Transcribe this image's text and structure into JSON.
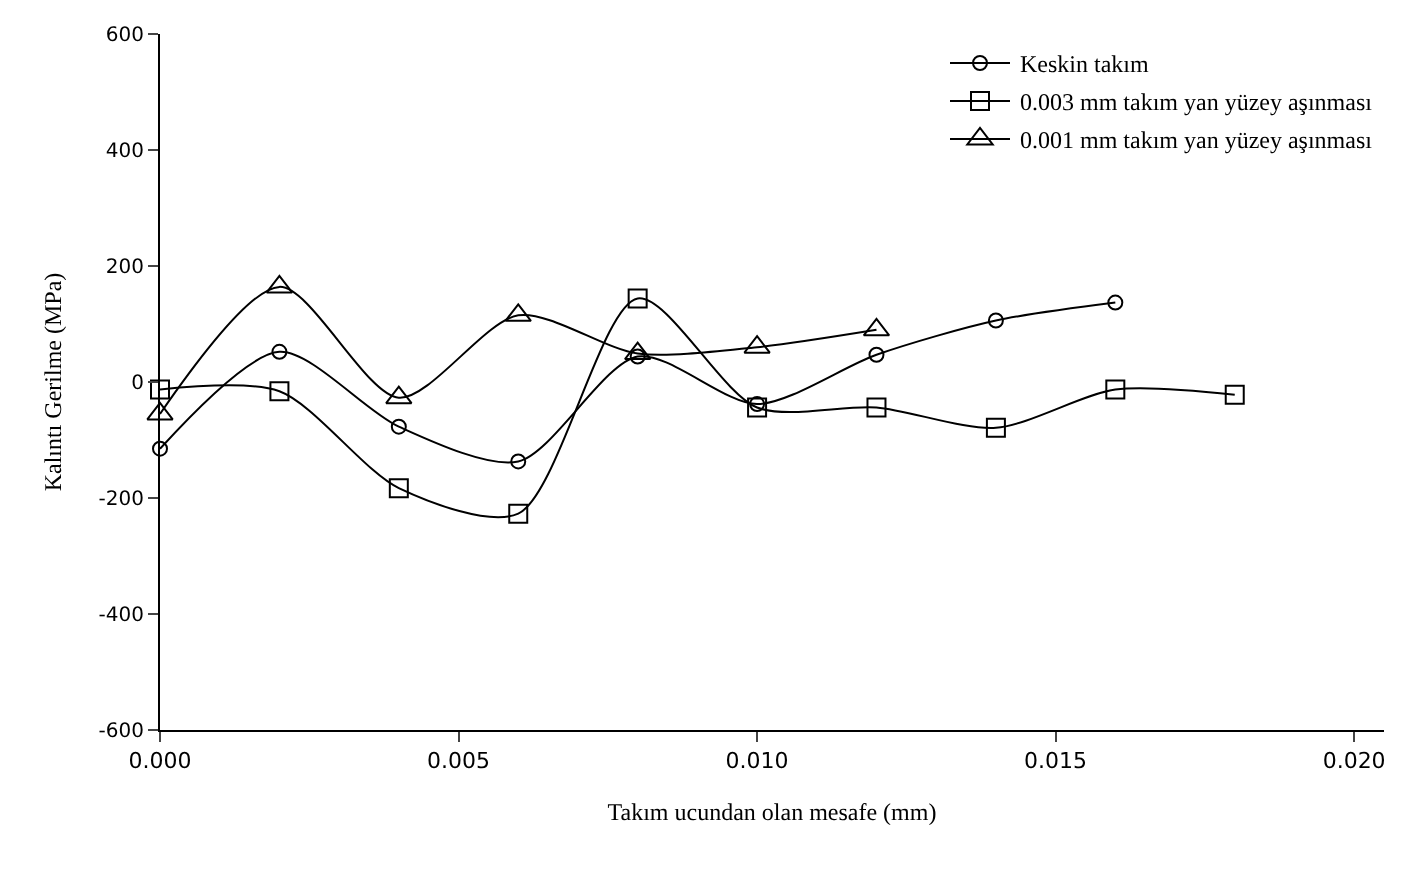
{
  "chart_data": {
    "type": "line",
    "xlabel": "Takım ucundan olan mesafe (mm)",
    "ylabel": "Kalıntı Gerilme (MPa)",
    "series": [
      {
        "name": "Keskin takım",
        "color": "#000000",
        "marker": "circle",
        "x": [
          0,
          0.002,
          0.004,
          0.006,
          0.008,
          0.01,
          0.012,
          0.014,
          0.016
        ],
        "values": [
          -115,
          52,
          -77,
          -137,
          44,
          -38,
          47,
          106,
          137
        ]
      },
      {
        "name": "0.003 mm takım yan yüzey aşınması",
        "color": "#000000",
        "marker": "square",
        "x": [
          0,
          0.002,
          0.004,
          0.006,
          0.008,
          0.01,
          0.012,
          0.014,
          0.016,
          0.018
        ],
        "values": [
          -13,
          -16,
          -183,
          -227,
          144,
          -44,
          -44,
          -79,
          -13,
          -22
        ]
      },
      {
        "name": "0.001 mm takım yan yüzey aşınması",
        "color": "#000000",
        "marker": "triangle",
        "x": [
          0,
          0.002,
          0.004,
          0.006,
          0.008,
          0.01,
          0.012
        ],
        "values": [
          -55,
          164,
          -27,
          115,
          49,
          60,
          90
        ]
      }
    ],
    "xlim": [
      0,
      0.0205
    ],
    "xticks": [
      {
        "value": 0,
        "label": "0.000"
      },
      {
        "value": 0.005,
        "label": "0.005"
      },
      {
        "value": 0.01,
        "label": "0.010"
      },
      {
        "value": 0.015,
        "label": "0.015"
      },
      {
        "value": 0.02,
        "label": "0.020"
      }
    ],
    "ylim": [
      -600,
      600
    ],
    "yticks": [
      -600,
      -400,
      -200,
      0,
      200,
      400,
      600
    ],
    "grid": false,
    "legend": "top right",
    "line_style": "solid"
  }
}
